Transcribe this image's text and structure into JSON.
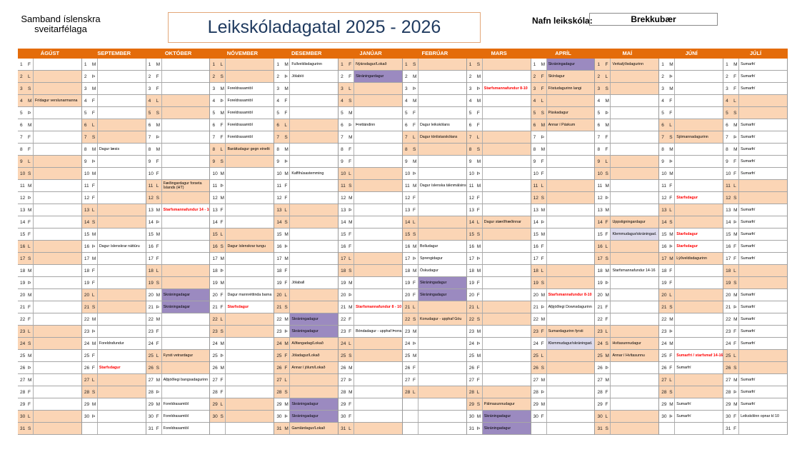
{
  "header": {
    "organization": "Samband íslenskra sveitarfélaga",
    "title": "Leikskóladagatal 2025 - 2026",
    "school_label": "Nafn leikskóla:",
    "school_name": "Brekkubær"
  },
  "colors": {
    "header": "#e46c0a",
    "holiday": "#fbd5b5",
    "registration": "#9b8ac0",
    "light_registration": "#dcdaec",
    "red_text": "#ff0000"
  },
  "weekday_letters": [
    "M",
    "Þ",
    "M",
    "F",
    "F",
    "L",
    "S"
  ],
  "months": [
    {
      "name": "ÁGÚST",
      "first_weekday": 4,
      "days": 31,
      "events": {
        "4": {
          "text": "Frídagur verslunarmanna",
          "style": "holiday"
        }
      }
    },
    {
      "name": "SEPTEMBER",
      "first_weekday": 0,
      "days": 30,
      "events": {
        "8": {
          "text": "Dagur læsis"
        },
        "16": {
          "text": "Dagur íslenskrar náttúru"
        },
        "24": {
          "text": "Foreldrafundur"
        },
        "26": {
          "text": "Starfsdagur",
          "style": "red"
        }
      }
    },
    {
      "name": "OKTÓBER",
      "first_weekday": 2,
      "days": 31,
      "events": {
        "11": {
          "text": "Fæðingardagur forseta Íslands (HT)",
          "style": "wrap"
        },
        "13": {
          "text": "Starfsmannafundur 14 - 16",
          "style": "red"
        },
        "20": {
          "text": "Skráningadagar",
          "style": "reg"
        },
        "21": {
          "text": "Skráningadagar",
          "style": "reg"
        },
        "25": {
          "text": "Fyrsti vetrardagur"
        },
        "27": {
          "text": "Alþjóðlegi bangsadagurinn"
        },
        "29": {
          "text": "Foreldrasamtöl"
        },
        "30": {
          "text": "Foreldrasamtöl"
        },
        "31": {
          "text": "Foreldrasamtöl"
        }
      }
    },
    {
      "name": "NÓVEMBER",
      "first_weekday": 5,
      "days": 30,
      "events": {
        "3": {
          "text": "Foreldrasamtöl"
        },
        "4": {
          "text": "Foreldrasamtöl"
        },
        "5": {
          "text": "Foreldrasamtöl"
        },
        "6": {
          "text": "Foreldrasamtöl"
        },
        "7": {
          "text": "Foreldrasamtöl"
        },
        "8": {
          "text": "Baráttudagur gegn einelti"
        },
        "16": {
          "text": "Dagur íslenskrar tungu"
        },
        "20": {
          "text": "Dagur mannréttinda barna"
        },
        "21": {
          "text": "Starfsdagur",
          "style": "red"
        }
      }
    },
    {
      "name": "DESEMBER",
      "first_weekday": 0,
      "days": 31,
      "events": {
        "1": {
          "text": "Fullveldisdagurinn"
        },
        "2": {
          "text": "Jólabíó"
        },
        "10": {
          "text": "Kaffihúsastemming"
        },
        "19": {
          "text": "Jólaball"
        },
        "22": {
          "text": "Skráningadagur",
          "style": "reg"
        },
        "23": {
          "text": "Skráningadagur",
          "style": "reg"
        },
        "24": {
          "text": "Aðfangadag/Lokað",
          "style": "holiday"
        },
        "25": {
          "text": "Jóladagur/Lokað",
          "style": "holiday"
        },
        "26": {
          "text": "Annar í jólum/Lokað",
          "style": "holiday"
        },
        "29": {
          "text": "Skráningadagur",
          "style": "reg"
        },
        "30": {
          "text": "Skráningadagur",
          "style": "reg"
        },
        "31": {
          "text": "Gamlárdagur/Lokað",
          "style": "holiday"
        }
      }
    },
    {
      "name": "JANÚAR",
      "first_weekday": 3,
      "days": 31,
      "events": {
        "1": {
          "text": "Nýársdagur/Lokað",
          "style": "holiday"
        },
        "2": {
          "text": "Skráningardagur",
          "style": "reg"
        },
        "6": {
          "text": "Þrettándinn"
        },
        "21": {
          "text": "Starfsmannafundur 8 - 10",
          "style": "red"
        },
        "23": {
          "text": "Bóndadagur - upphaf Þorra"
        }
      }
    },
    {
      "name": "FEBRÚAR",
      "first_weekday": 6,
      "days": 28,
      "events": {
        "6": {
          "text": "Dagur leikskólans"
        },
        "7": {
          "text": "Dagur tónlistarskólans"
        },
        "11": {
          "text": "Dagur íslenska táknmálsins"
        },
        "16": {
          "text": "Bolludagur"
        },
        "17": {
          "text": "Sprengidagur"
        },
        "18": {
          "text": "Öskudagur"
        },
        "19": {
          "text": "Skráningadagur",
          "style": "reg"
        },
        "20": {
          "text": "Skráningadagur",
          "style": "reg"
        },
        "22": {
          "text": "Konudagur - upphaf Góu"
        }
      }
    },
    {
      "name": "MARS",
      "first_weekday": 6,
      "days": 31,
      "events": {
        "3": {
          "text": "Starfsmannafundur 8-10",
          "style": "red"
        },
        "14": {
          "text": "Dagur stærðfræðinnar"
        },
        "29": {
          "text": "Pálmasunnudagur"
        },
        "30": {
          "text": "Skráningadagur",
          "style": "reg"
        },
        "31": {
          "text": "Skráningadagur",
          "style": "reg"
        }
      }
    },
    {
      "name": "APRÍL",
      "first_weekday": 2,
      "days": 30,
      "events": {
        "1": {
          "text": "Skráningadagur",
          "style": "reg"
        },
        "2": {
          "text": "Skírdagur",
          "style": "holiday"
        },
        "3": {
          "text": "Föstudagurinn langi",
          "style": "holiday"
        },
        "5": {
          "text": "Páskadagur"
        },
        "6": {
          "text": "Annar í Páskum",
          "style": "holiday"
        },
        "20": {
          "text": "Starfsmannafundur 8-10",
          "style": "red"
        },
        "21": {
          "text": "Alþjóðlegi Downsdagurinn"
        },
        "23": {
          "text": "Sumardagurinn fyrsti",
          "style": "holiday"
        },
        "24": {
          "text": "Klemmudagur/skráningad.",
          "style": "lreg"
        }
      }
    },
    {
      "name": "MAÍ",
      "first_weekday": 4,
      "days": 31,
      "events": {
        "1": {
          "text": "Verkalýðsdagurinn",
          "style": "holiday"
        },
        "14": {
          "text": "Uppstigningardagur",
          "style": "holiday"
        },
        "15": {
          "text": "Klemmudagur/skráningad.",
          "style": "lreg"
        },
        "18": {
          "text": "Starfsmannafundur 14-16"
        },
        "24": {
          "text": "Hvítasunnudagur"
        },
        "25": {
          "text": "Annar í Hvítasunnu",
          "style": "holiday"
        }
      }
    },
    {
      "name": "JÚNÍ",
      "first_weekday": 0,
      "days": 30,
      "events": {
        "7": {
          "text": "Sjómannadagurinn"
        },
        "12": {
          "text": "Starfsdagur",
          "style": "red"
        },
        "15": {
          "text": "Starfsdagur",
          "style": "red"
        },
        "16": {
          "text": "Starfsdagur",
          "style": "red"
        },
        "17": {
          "text": "Lýðveldisdagurinn",
          "style": "holiday"
        },
        "25": {
          "text": "Sumarfrí / starfsmaf 14-16",
          "style": "red"
        },
        "26": {
          "text": "Sumarfrí"
        },
        "29": {
          "text": "Sumarfrí"
        },
        "30": {
          "text": "Sumarfrí"
        }
      }
    },
    {
      "name": "JÚLÍ",
      "first_weekday": 2,
      "days": 31,
      "events": {
        "1": {
          "text": "Sumarfrí"
        },
        "2": {
          "text": "Sumarfrí"
        },
        "3": {
          "text": "Sumarfrí"
        },
        "6": {
          "text": "Sumarfrí"
        },
        "7": {
          "text": "Sumarfrí"
        },
        "8": {
          "text": "Sumarfrí"
        },
        "9": {
          "text": "Sumarfrí"
        },
        "10": {
          "text": "Sumarfrí"
        },
        "13": {
          "text": "Sumarfrí"
        },
        "14": {
          "text": "Sumarfrí"
        },
        "15": {
          "text": "Sumarfrí"
        },
        "16": {
          "text": "Sumarfrí"
        },
        "17": {
          "text": "Sumarfrí"
        },
        "20": {
          "text": "Sumarfrí"
        },
        "21": {
          "text": "Sumarfrí"
        },
        "22": {
          "text": "Sumarfrí"
        },
        "23": {
          "text": "Sumarfrí"
        },
        "24": {
          "text": "Sumarfrí"
        },
        "27": {
          "text": "Sumarfrí"
        },
        "28": {
          "text": "Sumarfrí"
        },
        "29": {
          "text": "Sumarfrí"
        },
        "30": {
          "text": "Leikskólinn opnar kl 10"
        }
      }
    }
  ]
}
